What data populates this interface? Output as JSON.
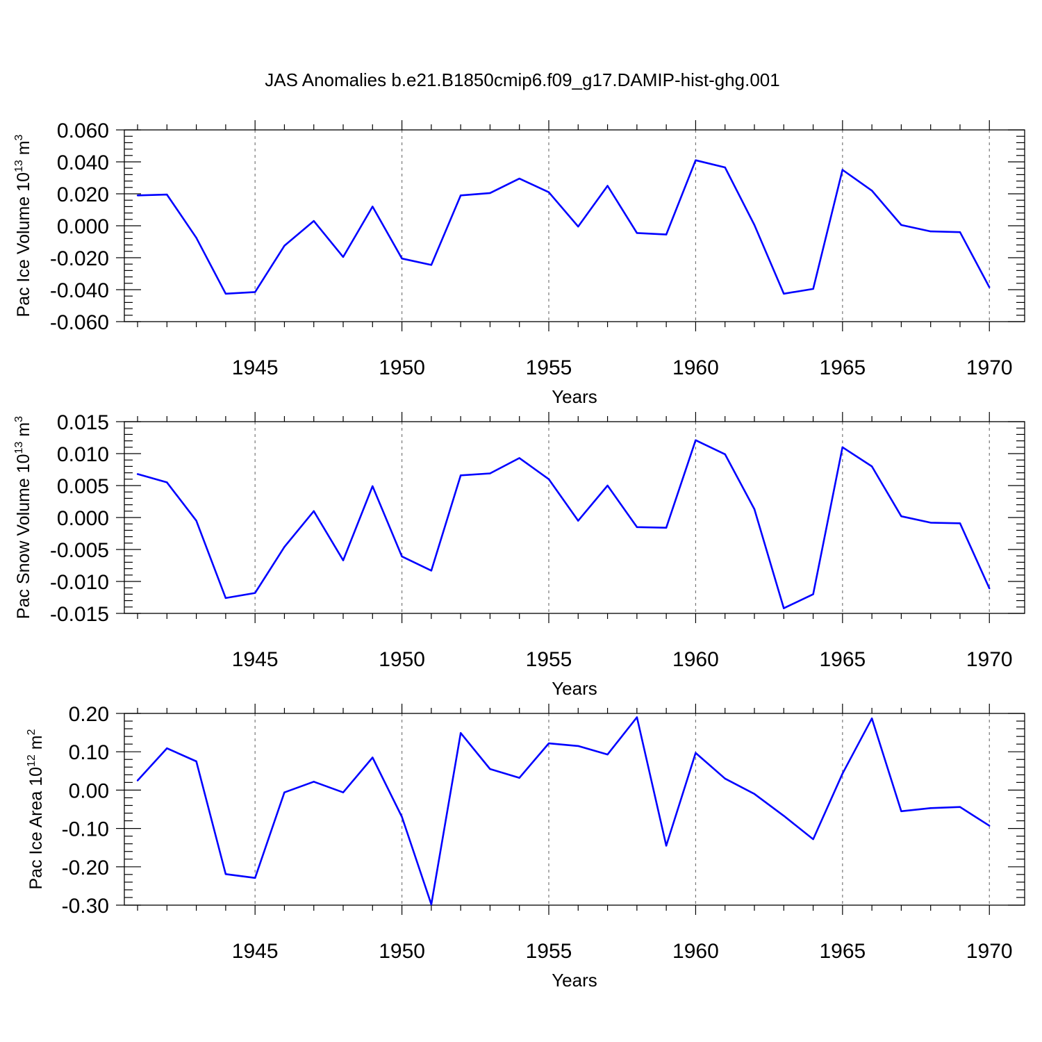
{
  "title": "JAS Anomalies b.e21.B1850cmip6.f09_g17.DAMIP-hist-ghg.001",
  "chart_data": [
    {
      "type": "line",
      "xlabel": "Years",
      "ylabel": "Pac Ice Volume 10",
      "ylabel_exponent": "13",
      "ylabel_unit": "m",
      "ylabel_unit_exponent": "3",
      "xlim": [
        1940.55,
        1971.2
      ],
      "ylim": [
        -0.06,
        0.06
      ],
      "xticks": [
        "1945",
        "1950",
        "1955",
        "1960",
        "1965",
        "1970"
      ],
      "yticks": [
        "0.060",
        "0.040",
        "0.020",
        "0.000",
        "-0.020",
        "-0.040",
        "-0.060"
      ],
      "grid": "vertical dashed at major x ticks",
      "line_color": "#0000ff",
      "x": [
        1941,
        1942,
        1943,
        1944,
        1945,
        1946,
        1947,
        1948,
        1949,
        1950,
        1951,
        1952,
        1953,
        1954,
        1955,
        1956,
        1957,
        1958,
        1959,
        1960,
        1961,
        1962,
        1963,
        1964,
        1965,
        1966,
        1967,
        1968,
        1969,
        1970
      ],
      "values": [
        0.019,
        0.0195,
        -0.0075,
        -0.0425,
        -0.0415,
        -0.0125,
        0.003,
        -0.0195,
        0.012,
        -0.0205,
        -0.0245,
        0.019,
        0.0205,
        0.0295,
        0.021,
        -0.0005,
        0.025,
        -0.0045,
        -0.0055,
        0.041,
        0.0365,
        0.0005,
        -0.0425,
        -0.0395,
        0.035,
        0.022,
        0.0005,
        -0.0035,
        -0.004,
        -0.0385
      ]
    },
    {
      "type": "line",
      "xlabel": "Years",
      "ylabel": "Pac Snow Volume 10",
      "ylabel_exponent": "13",
      "ylabel_unit": "m",
      "ylabel_unit_exponent": "3",
      "xlim": [
        1940.55,
        1971.2
      ],
      "ylim": [
        -0.015,
        0.015
      ],
      "xticks": [
        "1945",
        "1950",
        "1955",
        "1960",
        "1965",
        "1970"
      ],
      "yticks": [
        "0.015",
        "0.010",
        "0.005",
        "0.000",
        "-0.005",
        "-0.010",
        "-0.015"
      ],
      "grid": "vertical dashed at major x ticks",
      "line_color": "#0000ff",
      "x": [
        1941,
        1942,
        1943,
        1944,
        1945,
        1946,
        1947,
        1948,
        1949,
        1950,
        1951,
        1952,
        1953,
        1954,
        1955,
        1956,
        1957,
        1958,
        1959,
        1960,
        1961,
        1962,
        1963,
        1964,
        1965,
        1966,
        1967,
        1968,
        1969,
        1970
      ],
      "values": [
        0.0068,
        0.0055,
        -0.0005,
        -0.0126,
        -0.0118,
        -0.0046,
        0.001,
        -0.0067,
        0.0049,
        -0.0061,
        -0.0083,
        0.0066,
        0.0069,
        0.0093,
        0.006,
        -0.0005,
        0.005,
        -0.0015,
        -0.0016,
        0.0121,
        0.0099,
        0.0013,
        -0.0142,
        -0.012,
        0.011,
        0.008,
        0.0002,
        -0.0008,
        -0.0009,
        -0.0111
      ]
    },
    {
      "type": "line",
      "xlabel": "Years",
      "ylabel": "Pac Ice Area 10",
      "ylabel_exponent": "12",
      "ylabel_unit": "m",
      "ylabel_unit_exponent": "2",
      "xlim": [
        1940.55,
        1971.2
      ],
      "ylim": [
        -0.3,
        0.2
      ],
      "xticks": [
        "1945",
        "1950",
        "1955",
        "1960",
        "1965",
        "1970"
      ],
      "yticks": [
        "0.20",
        "0.10",
        "0.00",
        "-0.10",
        "-0.20",
        "-0.30"
      ],
      "grid": "vertical dashed at major x ticks",
      "line_color": "#0000ff",
      "x": [
        1941,
        1942,
        1943,
        1944,
        1945,
        1946,
        1947,
        1948,
        1949,
        1950,
        1951,
        1952,
        1953,
        1954,
        1955,
        1956,
        1957,
        1958,
        1959,
        1960,
        1961,
        1962,
        1963,
        1964,
        1965,
        1966,
        1967,
        1968,
        1969,
        1970
      ],
      "values": [
        0.025,
        0.109,
        0.075,
        -0.219,
        -0.229,
        -0.006,
        0.022,
        -0.006,
        0.085,
        -0.07,
        -0.298,
        0.149,
        0.055,
        0.032,
        0.122,
        0.115,
        0.093,
        0.19,
        -0.145,
        0.097,
        0.03,
        -0.01,
        -0.067,
        -0.128,
        0.043,
        0.187,
        -0.055,
        -0.047,
        -0.044,
        -0.093
      ]
    }
  ]
}
